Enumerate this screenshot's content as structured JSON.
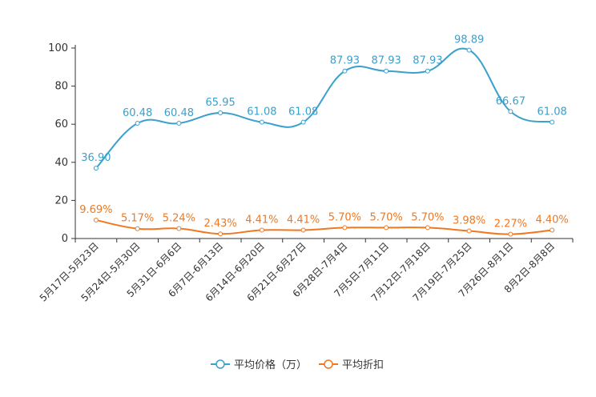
{
  "chart_data": {
    "type": "line",
    "categories": [
      "5月17日-5月23日",
      "5月24日-5月30日",
      "5月31日-6月6日",
      "6月7日-6月13日",
      "6月14日-6月20日",
      "6月21日-6月27日",
      "6月28日-7月4日",
      "7月5日-7月11日",
      "7月12日-7月18日",
      "7月19日-7月25日",
      "7月26日-8月1日",
      "8月2日-8月8日"
    ],
    "series": [
      {
        "name": "平均价格（万）",
        "color": "#3aa0cc",
        "values": [
          36.9,
          60.48,
          60.48,
          65.95,
          61.08,
          61.08,
          87.93,
          87.93,
          87.93,
          98.89,
          66.67,
          61.08
        ],
        "labels": [
          "36.90",
          "60.48",
          "60.48",
          "65.95",
          "61.08",
          "61.08",
          "87.93",
          "87.93",
          "87.93",
          "98.89",
          "66.67",
          "61.08"
        ]
      },
      {
        "name": "平均折扣",
        "color": "#f07820",
        "values": [
          9.69,
          5.17,
          5.24,
          2.43,
          4.41,
          4.41,
          5.7,
          5.7,
          5.7,
          3.98,
          2.27,
          4.4
        ],
        "labels": [
          "9.69%",
          "5.17%",
          "5.24%",
          "2.43%",
          "4.41%",
          "4.41%",
          "5.70%",
          "5.70%",
          "5.70%",
          "3.98%",
          "2.27%",
          "4.40%"
        ]
      }
    ],
    "ylim": [
      0,
      100
    ],
    "yticks": [
      0,
      20,
      40,
      60,
      80,
      100
    ],
    "legend_position": "bottom-center",
    "smooth": true
  }
}
